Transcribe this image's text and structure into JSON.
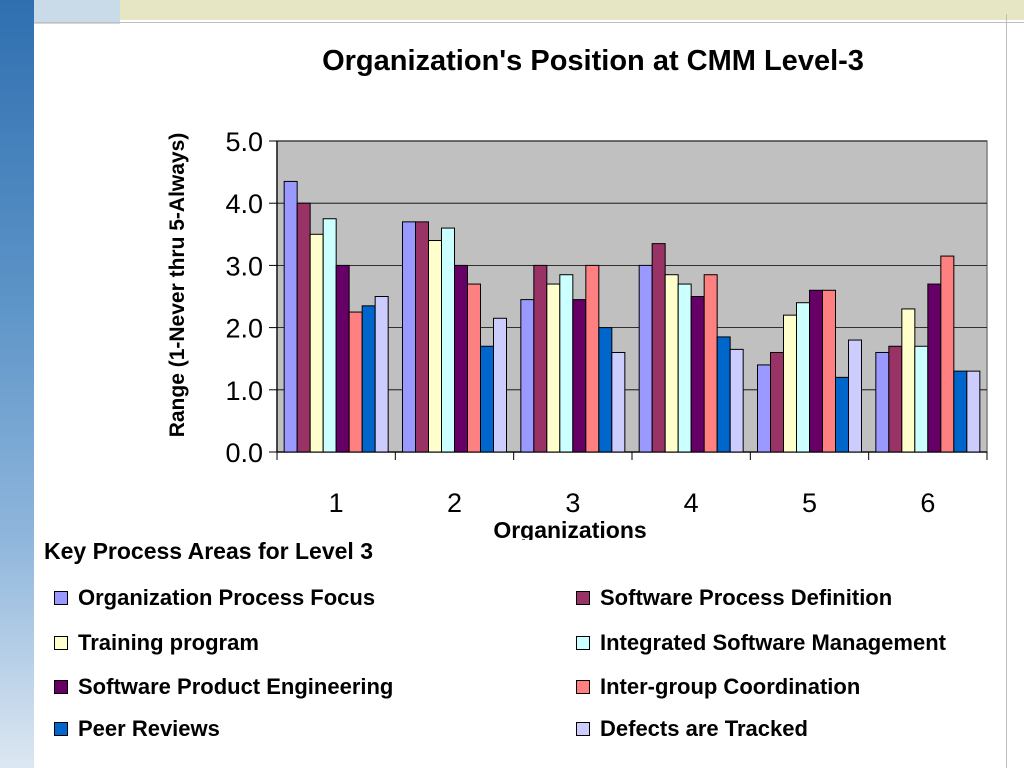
{
  "chart_data": {
    "type": "bar",
    "title": "Organization's Position at CMM Level-3",
    "xlabel": "Organizations",
    "ylabel": "Range (1-Never thru 5-Always)",
    "categories": [
      "1",
      "2",
      "3",
      "4",
      "5",
      "6"
    ],
    "y_tick_labels": [
      "0.0",
      "1.0",
      "2.0",
      "3.0",
      "4.0",
      "5.0"
    ],
    "ylim": [
      0,
      5
    ],
    "grid": true,
    "legend_title": "Key Process Areas for Level 3",
    "legend_position": "bottom",
    "series": [
      {
        "name": "Organization Process Focus",
        "color": "#9999ff",
        "values": [
          4.35,
          3.7,
          2.45,
          3.0,
          1.4,
          1.6
        ]
      },
      {
        "name": "Software Process Definition",
        "color": "#993366",
        "values": [
          4.0,
          3.7,
          3.0,
          3.35,
          1.6,
          1.7
        ]
      },
      {
        "name": "Training program",
        "color": "#ffffcc",
        "values": [
          3.5,
          3.4,
          2.7,
          2.85,
          2.2,
          2.3
        ]
      },
      {
        "name": "Integrated  Software Management",
        "color": "#ccffff",
        "values": [
          3.75,
          3.6,
          2.85,
          2.7,
          2.4,
          1.7
        ]
      },
      {
        "name": "Software Product Engineering",
        "color": "#660066",
        "values": [
          3.0,
          3.0,
          2.45,
          2.5,
          2.6,
          2.7
        ]
      },
      {
        "name": "Inter-group Coordination",
        "color": "#ff8080",
        "values": [
          2.25,
          2.7,
          3.0,
          2.85,
          2.6,
          3.15
        ]
      },
      {
        "name": "Peer Reviews",
        "color": "#0066cc",
        "values": [
          2.35,
          1.7,
          2.0,
          1.85,
          1.2,
          1.3
        ]
      },
      {
        "name": "Defects are Tracked",
        "color": "#ccccff",
        "values": [
          2.5,
          2.15,
          1.6,
          1.65,
          1.8,
          1.3
        ]
      }
    ]
  },
  "colors": {
    "plot_background": "#c0c0c0",
    "gridline": "#000000"
  }
}
